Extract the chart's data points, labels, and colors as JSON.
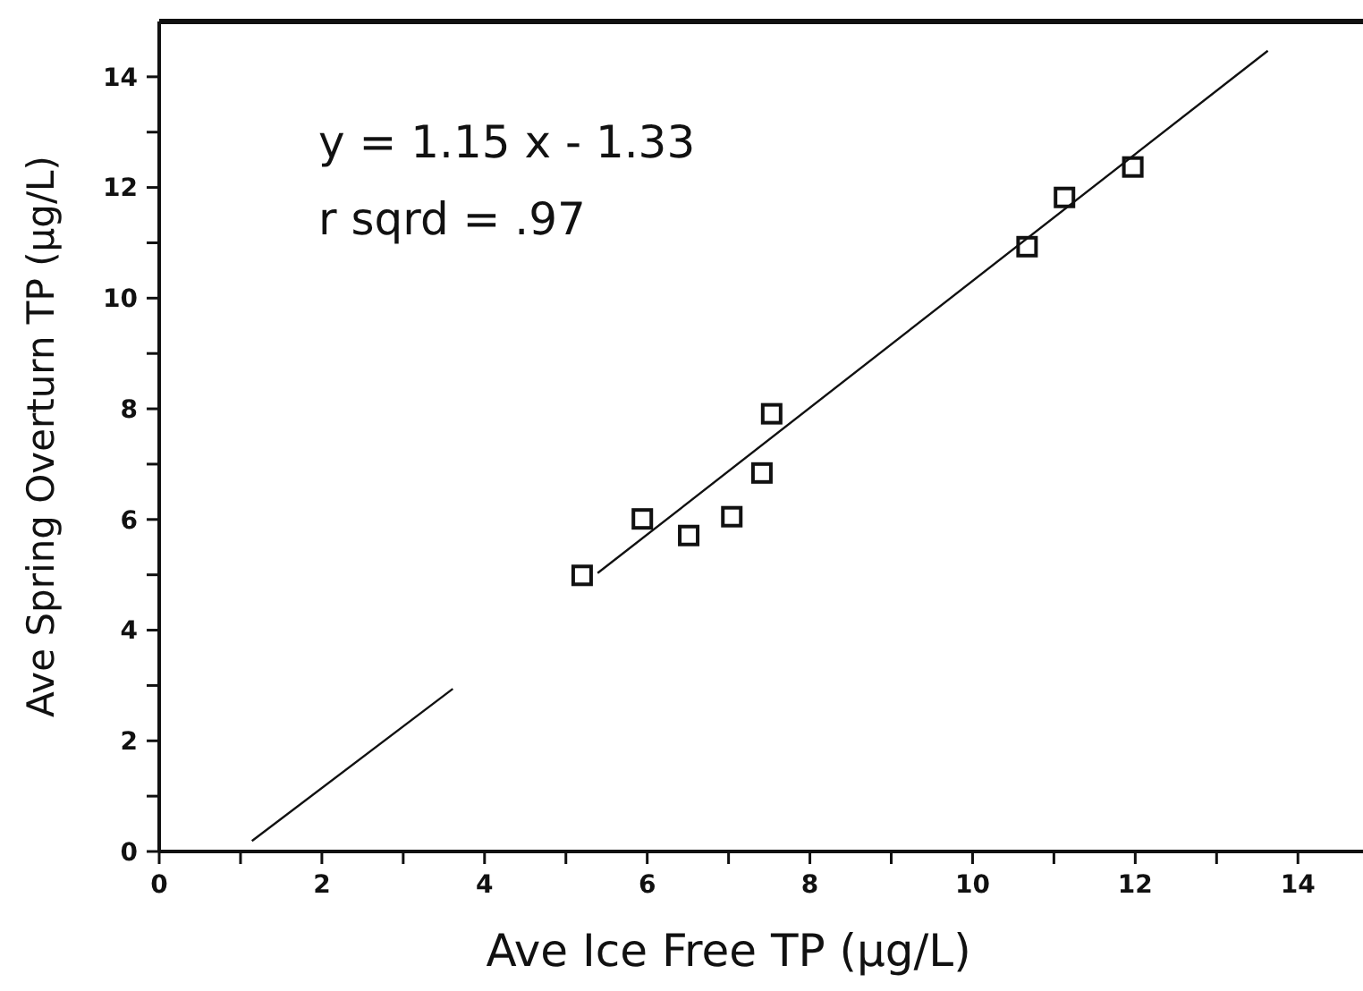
{
  "chart_data": {
    "type": "scatter",
    "xlabel": "Ave Ice Free TP (µg/L)",
    "ylabel": "Ave Spring Overturn TP (µg/L)",
    "annotations": [
      "y = 1.15 x - 1.33",
      "r sqrd = .97"
    ],
    "xlim": [
      0,
      14.8
    ],
    "ylim": [
      0,
      15
    ],
    "xticks": [
      0,
      {
        "value": 1,
        "label": null
      },
      2,
      {
        "value": 3,
        "label": null
      },
      4,
      {
        "value": 5,
        "label": null
      },
      6,
      {
        "value": 7,
        "label": null
      },
      8,
      {
        "value": 9,
        "label": null
      },
      10,
      {
        "value": 11,
        "label": null
      },
      12,
      {
        "value": 13,
        "label": null
      },
      14
    ],
    "yticks": [
      0,
      {
        "value": 1,
        "label": null
      },
      2,
      {
        "value": 3,
        "label": null
      },
      4,
      {
        "value": 5,
        "label": null
      },
      6,
      {
        "value": 7,
        "label": null
      },
      8,
      {
        "value": 9,
        "label": null
      },
      10,
      {
        "value": 11,
        "label": null
      },
      12,
      {
        "value": 13,
        "label": null
      },
      14
    ],
    "grid": false,
    "series": [
      {
        "color": "#111111",
        "marker": "square",
        "x": [
          5.2,
          5.94,
          6.51,
          7.04,
          7.41,
          7.53,
          10.67,
          11.13,
          11.97
        ],
        "values": [
          4.99,
          6.01,
          5.71,
          6.05,
          6.84,
          7.91,
          10.93,
          11.82,
          12.37
        ]
      },
      {
        "type": "line",
        "color": "#111111",
        "marker": "none",
        "line_style": "solid",
        "x": [
          1.14,
          3.61,
          4.5,
          5.39,
          13.63
        ],
        "values": [
          0.19,
          2.94,
          null,
          5.03,
          14.47
        ]
      }
    ]
  }
}
